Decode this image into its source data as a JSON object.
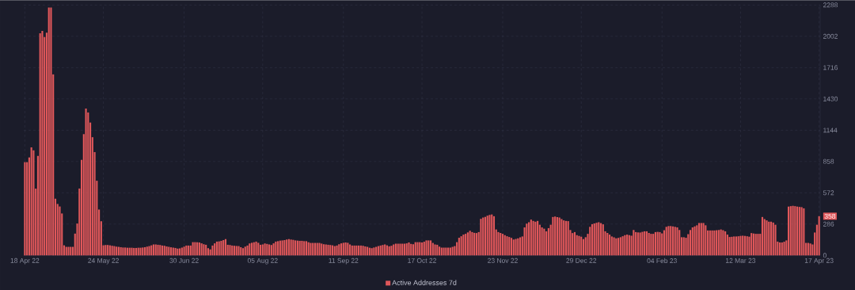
{
  "chart_data": {
    "type": "bar",
    "x": [
      "2022-04-18",
      "2022-04-19",
      "2022-04-20",
      "2022-04-21",
      "2022-04-22",
      "2022-04-23",
      "2022-04-24",
      "2022-04-25",
      "2022-04-26",
      "2022-04-27",
      "2022-04-28",
      "2022-04-29",
      "2022-04-30",
      "2022-05-01",
      "2022-05-02",
      "2022-05-03",
      "2022-05-04",
      "2022-05-05",
      "2022-05-06",
      "2022-05-07",
      "2022-05-08",
      "2022-05-09",
      "2022-05-10",
      "2022-05-11",
      "2022-05-12",
      "2022-05-13",
      "2022-05-14",
      "2022-05-15",
      "2022-05-16",
      "2022-05-17",
      "2022-05-18",
      "2022-05-19",
      "2022-05-20",
      "2022-05-21",
      "2022-05-22",
      "2022-05-23",
      "2022-05-24",
      "2022-05-25",
      "2022-05-26",
      "2022-05-27",
      "2022-05-28",
      "2022-05-29",
      "2022-05-30",
      "2022-05-31",
      "2022-06-01",
      "2022-06-02",
      "2022-06-03",
      "2022-06-04",
      "2022-06-05",
      "2022-06-06",
      "2022-06-07",
      "2022-06-08",
      "2022-06-09",
      "2022-06-10",
      "2022-06-11",
      "2022-06-12",
      "2022-06-13",
      "2022-06-14",
      "2022-06-15",
      "2022-06-16",
      "2022-06-17",
      "2022-06-18",
      "2022-06-19",
      "2022-06-20",
      "2022-06-21",
      "2022-06-22",
      "2022-06-23",
      "2022-06-24",
      "2022-06-25",
      "2022-06-26",
      "2022-06-27",
      "2022-06-28",
      "2022-06-29",
      "2022-06-30",
      "2022-07-01",
      "2022-07-02",
      "2022-07-03",
      "2022-07-04",
      "2022-07-05",
      "2022-07-06",
      "2022-07-07",
      "2022-07-08",
      "2022-07-09",
      "2022-07-10",
      "2022-07-11",
      "2022-07-12",
      "2022-07-13",
      "2022-07-14",
      "2022-07-15",
      "2022-07-16",
      "2022-07-17",
      "2022-07-18",
      "2022-07-19",
      "2022-07-20",
      "2022-07-21",
      "2022-07-22",
      "2022-07-23",
      "2022-07-24",
      "2022-07-25",
      "2022-07-26",
      "2022-07-27",
      "2022-07-28",
      "2022-07-29",
      "2022-07-30",
      "2022-07-31",
      "2022-08-01",
      "2022-08-02",
      "2022-08-03",
      "2022-08-04",
      "2022-08-05",
      "2022-08-06",
      "2022-08-07",
      "2022-08-08",
      "2022-08-09",
      "2022-08-10",
      "2022-08-11",
      "2022-08-12",
      "2022-08-13",
      "2022-08-14",
      "2022-08-15",
      "2022-08-16",
      "2022-08-17",
      "2022-08-18",
      "2022-08-19",
      "2022-08-20",
      "2022-08-21",
      "2022-08-22",
      "2022-08-23",
      "2022-08-24",
      "2022-08-25",
      "2022-08-26",
      "2022-08-27",
      "2022-08-28",
      "2022-08-29",
      "2022-08-30",
      "2022-08-31",
      "2022-09-01",
      "2022-09-02",
      "2022-09-03",
      "2022-09-04",
      "2022-09-05",
      "2022-09-06",
      "2022-09-07",
      "2022-09-08",
      "2022-09-09",
      "2022-09-10",
      "2022-09-11",
      "2022-09-12",
      "2022-09-13",
      "2022-09-14",
      "2022-09-15",
      "2022-09-16",
      "2022-09-17",
      "2022-09-18",
      "2022-09-19",
      "2022-09-20",
      "2022-09-21",
      "2022-09-22",
      "2022-09-23",
      "2022-09-24",
      "2022-09-25",
      "2022-09-26",
      "2022-09-27",
      "2022-09-28",
      "2022-09-29",
      "2022-09-30",
      "2022-10-01",
      "2022-10-02",
      "2022-10-03",
      "2022-10-04",
      "2022-10-05",
      "2022-10-06",
      "2022-10-07",
      "2022-10-08",
      "2022-10-09",
      "2022-10-10",
      "2022-10-11",
      "2022-10-12",
      "2022-10-13",
      "2022-10-14",
      "2022-10-15",
      "2022-10-16",
      "2022-10-17",
      "2022-10-18",
      "2022-10-19",
      "2022-10-20",
      "2022-10-21",
      "2022-10-22",
      "2022-10-23",
      "2022-10-24",
      "2022-10-25",
      "2022-10-26",
      "2022-10-27",
      "2022-10-28",
      "2022-10-29",
      "2022-10-30",
      "2022-10-31",
      "2022-11-01",
      "2022-11-02",
      "2022-11-03",
      "2022-11-04",
      "2022-11-05",
      "2022-11-06",
      "2022-11-07",
      "2022-11-08",
      "2022-11-09",
      "2022-11-10",
      "2022-11-11",
      "2022-11-12",
      "2022-11-13",
      "2022-11-14",
      "2022-11-15",
      "2022-11-16",
      "2022-11-17",
      "2022-11-18",
      "2022-11-19",
      "2022-11-20",
      "2022-11-21",
      "2022-11-22",
      "2022-11-23",
      "2022-11-24",
      "2022-11-25",
      "2022-11-26",
      "2022-11-27",
      "2022-11-28",
      "2022-11-29",
      "2022-11-30",
      "2022-12-01",
      "2022-12-02",
      "2022-12-03",
      "2022-12-04",
      "2022-12-05",
      "2022-12-06",
      "2022-12-07",
      "2022-12-08",
      "2022-12-09",
      "2022-12-10",
      "2022-12-11",
      "2022-12-12",
      "2022-12-13",
      "2022-12-14",
      "2022-12-15",
      "2022-12-16",
      "2022-12-17",
      "2022-12-18",
      "2022-12-19",
      "2022-12-20",
      "2022-12-21",
      "2022-12-22",
      "2022-12-23",
      "2022-12-24",
      "2022-12-25",
      "2022-12-26",
      "2022-12-27",
      "2022-12-28",
      "2022-12-29",
      "2022-12-30",
      "2022-12-31",
      "2023-01-01",
      "2023-01-02",
      "2023-01-03",
      "2023-01-04",
      "2023-01-05",
      "2023-01-06",
      "2023-01-07",
      "2023-01-08",
      "2023-01-09",
      "2023-01-10",
      "2023-01-11",
      "2023-01-12",
      "2023-01-13",
      "2023-01-14",
      "2023-01-15",
      "2023-01-16",
      "2023-01-17",
      "2023-01-18",
      "2023-01-19",
      "2023-01-20",
      "2023-01-21",
      "2023-01-22",
      "2023-01-23",
      "2023-01-24",
      "2023-01-25",
      "2023-01-26",
      "2023-01-27",
      "2023-01-28",
      "2023-01-29",
      "2023-01-30",
      "2023-01-31",
      "2023-02-01",
      "2023-02-02",
      "2023-02-03",
      "2023-02-04",
      "2023-02-05",
      "2023-02-06",
      "2023-02-07",
      "2023-02-08",
      "2023-02-09",
      "2023-02-10",
      "2023-02-11",
      "2023-02-12",
      "2023-02-13",
      "2023-02-14",
      "2023-02-15",
      "2023-02-16",
      "2023-02-17",
      "2023-02-18",
      "2023-02-19",
      "2023-02-20",
      "2023-02-21",
      "2023-02-22",
      "2023-02-23",
      "2023-02-24",
      "2023-02-25",
      "2023-02-26",
      "2023-02-27",
      "2023-02-28",
      "2023-03-01",
      "2023-03-02",
      "2023-03-03",
      "2023-03-04",
      "2023-03-05",
      "2023-03-06",
      "2023-03-07",
      "2023-03-08",
      "2023-03-09",
      "2023-03-10",
      "2023-03-11",
      "2023-03-12",
      "2023-03-13",
      "2023-03-14",
      "2023-03-15",
      "2023-03-16",
      "2023-03-17",
      "2023-03-18",
      "2023-03-19",
      "2023-03-20",
      "2023-03-21",
      "2023-03-22",
      "2023-03-23",
      "2023-03-24",
      "2023-03-25",
      "2023-03-26",
      "2023-03-27",
      "2023-03-28",
      "2023-03-29",
      "2023-03-30",
      "2023-03-31",
      "2023-04-01",
      "2023-04-02",
      "2023-04-03",
      "2023-04-04",
      "2023-04-05",
      "2023-04-06",
      "2023-04-07",
      "2023-04-08",
      "2023-04-09",
      "2023-04-10",
      "2023-04-11",
      "2023-04-12",
      "2023-04-13",
      "2023-04-14",
      "2023-04-15",
      "2023-04-16",
      "2023-04-17"
    ],
    "series": [
      {
        "name": "Active Addresses 7d",
        "color": "#e0575a",
        "values": [
          852,
          852,
          895,
          987,
          960,
          610,
          909,
          2030,
          2052,
          1995,
          2035,
          2265,
          2265,
          1654,
          518,
          470,
          447,
          383,
          92,
          78,
          78,
          78,
          78,
          199,
          291,
          611,
          873,
          1108,
          1342,
          1306,
          1214,
          1080,
          944,
          682,
          419,
          312,
          92,
          95,
          95,
          92,
          88,
          85,
          80,
          78,
          75,
          72,
          72,
          70,
          70,
          70,
          68,
          68,
          70,
          70,
          72,
          75,
          80,
          85,
          92,
          100,
          100,
          97,
          95,
          90,
          88,
          82,
          78,
          74,
          71,
          68,
          62,
          64,
          71,
          80,
          90,
          90,
          90,
          121,
          121,
          120,
          118,
          110,
          102,
          97,
          66,
          55,
          90,
          110,
          126,
          128,
          133,
          140,
          149,
          97,
          95,
          90,
          88,
          86,
          85,
          75,
          66,
          80,
          90,
          109,
          115,
          120,
          126,
          115,
          97,
          100,
          109,
          105,
          100,
          95,
          110,
          126,
          130,
          135,
          137,
          140,
          145,
          149,
          145,
          142,
          137,
          135,
          133,
          133,
          130,
          130,
          120,
          114,
          114,
          114,
          114,
          114,
          108,
          102,
          100,
          97,
          95,
          92,
          85,
          90,
          102,
          110,
          115,
          118,
          115,
          100,
          90,
          90,
          90,
          90,
          90,
          88,
          82,
          78,
          70,
          66,
          72,
          78,
          85,
          90,
          95,
          100,
          92,
          83,
          88,
          100,
          107,
          107,
          107,
          107,
          107,
          110,
          118,
          105,
          102,
          121,
          121,
          121,
          118,
          125,
          137,
          137,
          137,
          114,
          100,
          97,
          80,
          71,
          71,
          71,
          71,
          71,
          78,
          85,
          121,
          161,
          175,
          190,
          197,
          210,
          225,
          213,
          206,
          204,
          213,
          334,
          346,
          352,
          363,
          370,
          374,
          358,
          237,
          213,
          205,
          197,
          185,
          175,
          168,
          160,
          145,
          150,
          156,
          165,
          173,
          256,
          290,
          303,
          327,
          315,
          308,
          315,
          280,
          256,
          244,
          220,
          249,
          280,
          351,
          355,
          350,
          346,
          332,
          320,
          315,
          313,
          232,
          204,
          213,
          185,
          178,
          171,
          149,
          166,
          197,
          261,
          285,
          292,
          298,
          303,
          295,
          284,
          220,
          205,
          190,
          173,
          165,
          156,
          160,
          166,
          175,
          185,
          190,
          185,
          180,
          232,
          213,
          210,
          209,
          215,
          220,
          220,
          205,
          197,
          197,
          213,
          215,
          213,
          201,
          230,
          261,
          268,
          268,
          265,
          261,
          256,
          232,
          166,
          166,
          161,
          194,
          232,
          256,
          265,
          275,
          296,
          296,
          296,
          275,
          228,
          228,
          228,
          228,
          230,
          232,
          237,
          230,
          220,
          190,
          168,
          170,
          173,
          173,
          175,
          178,
          180,
          178,
          175,
          171,
          204,
          200,
          197,
          197,
          197,
          351,
          332,
          320,
          308,
          308,
          300,
          280,
          126,
          118,
          118,
          125,
          137,
          446,
          450,
          453,
          450,
          446,
          443,
          441,
          430,
          114,
          114,
          109,
          100,
          209,
          280,
          358
        ]
      }
    ],
    "xlim": [
      "2022-04-17T12:00",
      "2023-04-17T12:00"
    ],
    "xticks": [
      {
        "value": "2022-04-18",
        "label": "18 Apr 22"
      },
      {
        "value": "2022-05-24",
        "label": "24 May 22"
      },
      {
        "value": "2022-06-30",
        "label": "30 Jun 22"
      },
      {
        "value": "2022-08-05",
        "label": "05 Aug 22"
      },
      {
        "value": "2022-09-11",
        "label": "11 Sep 22"
      },
      {
        "value": "2022-10-17",
        "label": "17 Oct 22"
      },
      {
        "value": "2022-11-23",
        "label": "23 Nov 22"
      },
      {
        "value": "2022-12-29",
        "label": "29 Dec 22"
      },
      {
        "value": "2023-02-04",
        "label": "04 Feb 23"
      },
      {
        "value": "2023-03-12",
        "label": "12 Mar 23"
      },
      {
        "value": "2023-04-17",
        "label": "17 Apr 23"
      }
    ],
    "ylim": [
      0,
      2288
    ],
    "yticks": [
      0,
      286,
      572,
      858,
      1144,
      1430,
      1716,
      2002,
      2288
    ],
    "grid": true,
    "legend": "bottom",
    "annotations": [
      {
        "text": "358",
        "x": "2023-04-17",
        "y": 358
      }
    ]
  }
}
